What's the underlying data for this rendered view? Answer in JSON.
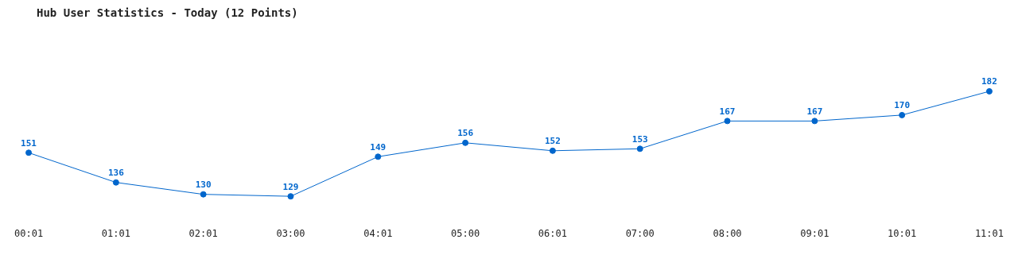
{
  "chart_data": {
    "type": "line",
    "title": "Hub User Statistics - Today (12 Points)",
    "categories": [
      "00:01",
      "01:01",
      "02:01",
      "03:00",
      "04:01",
      "05:00",
      "06:01",
      "07:00",
      "08:00",
      "09:01",
      "10:01",
      "11:01"
    ],
    "series": [
      {
        "color": "#0066cc",
        "values": [
          151,
          136,
          130,
          129,
          149,
          156,
          152,
          153,
          167,
          167,
          170,
          182
        ]
      }
    ],
    "data_labels": true,
    "grid": false,
    "legend": false,
    "marker": "circle",
    "line_style": "solid"
  }
}
